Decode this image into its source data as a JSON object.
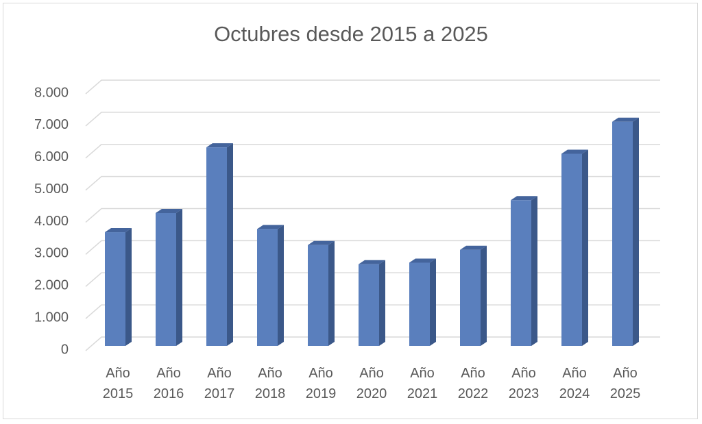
{
  "chart_data": {
    "type": "bar",
    "title": "Octubres desde 2015 a 2025",
    "categories": [
      "Año 2015",
      "Año 2016",
      "Año 2017",
      "Año 2018",
      "Año 2019",
      "Año 2020",
      "Año 2021",
      "Año 2022",
      "Año 2023",
      "Año 2024",
      "Año 2025"
    ],
    "values": [
      3550,
      4150,
      6200,
      3650,
      3150,
      2550,
      2600,
      3000,
      4550,
      6000,
      7000
    ],
    "color": "#5a7fbd",
    "ylim": [
      0,
      8000
    ],
    "yticks": [
      0,
      {
        "value": 1000,
        "label": "1.000"
      },
      {
        "value": 2000,
        "label": "2.000"
      },
      {
        "value": 3000,
        "label": "3.000"
      },
      {
        "value": 4000,
        "label": "4.000"
      },
      {
        "value": 5000,
        "label": "5.000"
      },
      {
        "value": 6000,
        "label": "6.000"
      },
      {
        "value": 7000,
        "label": "7.000"
      },
      {
        "value": 8000,
        "label": "8.000"
      }
    ],
    "grid": true
  }
}
